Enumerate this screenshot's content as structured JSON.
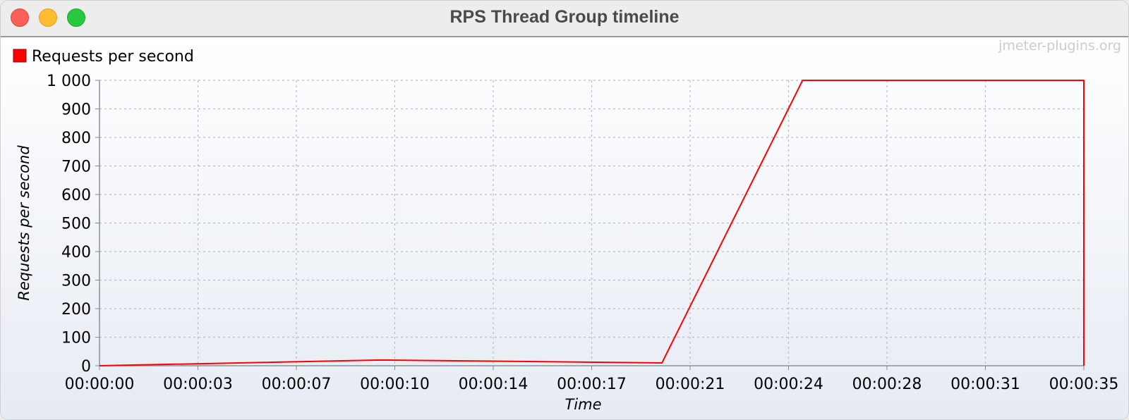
{
  "window": {
    "title": "RPS Thread Group timeline",
    "buttons": [
      "close",
      "minimize",
      "maximize"
    ]
  },
  "watermark": "jmeter-plugins.org",
  "colors": {
    "series": "#ff0000",
    "grid": "#b8bcc4"
  },
  "chart_data": {
    "type": "line",
    "title": "",
    "xlabel": "Time",
    "ylabel": "Requests per second",
    "legend": "top-left",
    "grid": true,
    "xlim": [
      "00:00:00",
      "00:00:35"
    ],
    "ylim": [
      0,
      1000
    ],
    "x_ticks": [
      "00:00:00",
      "00:00:03",
      "00:00:07",
      "00:00:10",
      "00:00:14",
      "00:00:17",
      "00:00:21",
      "00:00:24",
      "00:00:28",
      "00:00:31",
      "00:00:35"
    ],
    "y_ticks": [
      "0",
      "100",
      "200",
      "300",
      "400",
      "500",
      "600",
      "700",
      "800",
      "900",
      "1 000"
    ],
    "series": [
      {
        "name": "Requests per second",
        "color": "#ff0000",
        "points": [
          {
            "x": "00:00:00",
            "y": 0
          },
          {
            "x": "00:00:10",
            "y": 20
          },
          {
            "x": "00:00:20",
            "y": 10
          },
          {
            "x": "00:00:25",
            "y": 1000
          },
          {
            "x": "00:00:35",
            "y": 1000
          },
          {
            "x": "00:00:35",
            "y": 0
          }
        ]
      }
    ]
  }
}
